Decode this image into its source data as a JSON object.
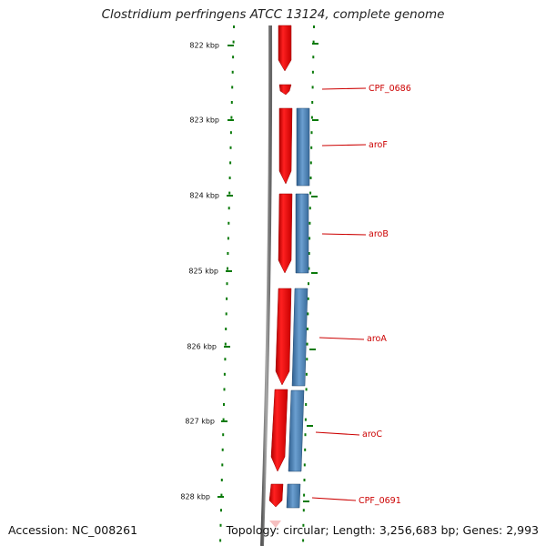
{
  "title": "Clostridium perfringens ATCC 13124, complete genome",
  "accession": "Accession: NC_008261",
  "summary": "Topology: circular; Length: 3,256,683 bp; Genes: 2,993",
  "colors": {
    "forward": "#e01010",
    "reverse": "#4a7fb0",
    "backbone": "#777777",
    "ticks": "#0a7a0a",
    "labels": "#cc0000"
  },
  "scale_labels": [
    "822 kbp",
    "823 kbp",
    "824 kbp",
    "825 kbp",
    "826 kbp",
    "827 kbp",
    "828 kbp"
  ],
  "genes": [
    {
      "name": "CPF_0686",
      "strand": "forward"
    },
    {
      "name": "aroF",
      "strand": "both"
    },
    {
      "name": "aroB",
      "strand": "both"
    },
    {
      "name": "aroA",
      "strand": "both"
    },
    {
      "name": "aroC",
      "strand": "both"
    },
    {
      "name": "CPF_0691",
      "strand": "both"
    }
  ]
}
